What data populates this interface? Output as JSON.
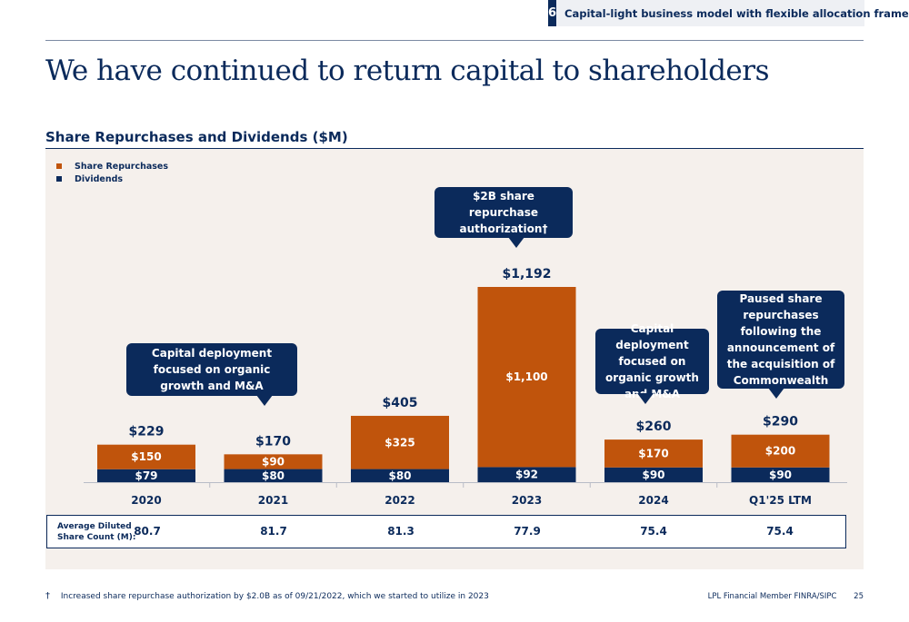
{
  "header": {
    "section_number": "6",
    "section_title": "Capital-light business model with flexible allocation framework"
  },
  "title": "We have continued to return capital to shareholders",
  "subtitle": "Share Repurchases and Dividends ($M)",
  "colors": {
    "repurchases": "#c0540c",
    "dividends": "#0b2a5b",
    "panel": "#f5f0ec"
  },
  "chart_data": {
    "type": "bar",
    "stacked": true,
    "categories": [
      "2020",
      "2021",
      "2022",
      "2023",
      "2024",
      "Q1'25 LTM"
    ],
    "series": [
      {
        "name": "Dividends",
        "values": [
          79,
          80,
          80,
          92,
          90,
          90
        ],
        "labels": [
          "$79",
          "$80",
          "$80",
          "$92",
          "$90",
          "$90"
        ]
      },
      {
        "name": "Share Repurchases",
        "values": [
          150,
          90,
          325,
          1100,
          170,
          200
        ],
        "labels": [
          "$150",
          "$90",
          "$325",
          "$1,100",
          "$170",
          "$200"
        ]
      }
    ],
    "totals": [
      229,
      170,
      405,
      1192,
      260,
      290
    ],
    "total_labels": [
      "$229",
      "$170",
      "$405",
      "$1,192",
      "$260",
      "$290"
    ],
    "ylim": [
      0,
      1192
    ],
    "legend_position": "top-left",
    "grid": false
  },
  "callouts": [
    {
      "text": "Capital deployment focused on organic growth and M&A"
    },
    {
      "text": "$2B share repurchase authorization†"
    },
    {
      "text": "Capital deployment focused on organic growth and M&A"
    },
    {
      "text": "Paused share repurchases following the announcement of the acquisition of Commonwealth"
    }
  ],
  "share_count": {
    "label_line1": "Average Diluted",
    "label_line2": "Share Count (M):",
    "values": [
      "80.7",
      "81.7",
      "81.3",
      "77.9",
      "75.4",
      "75.4"
    ]
  },
  "footnote": {
    "symbol": "†",
    "text": "Increased share repurchase authorization by $2.0B as of 09/21/2022, which we started to utilize in 2023"
  },
  "footer": {
    "firm": "LPL Financial Member FINRA/SIPC",
    "page": "25"
  }
}
